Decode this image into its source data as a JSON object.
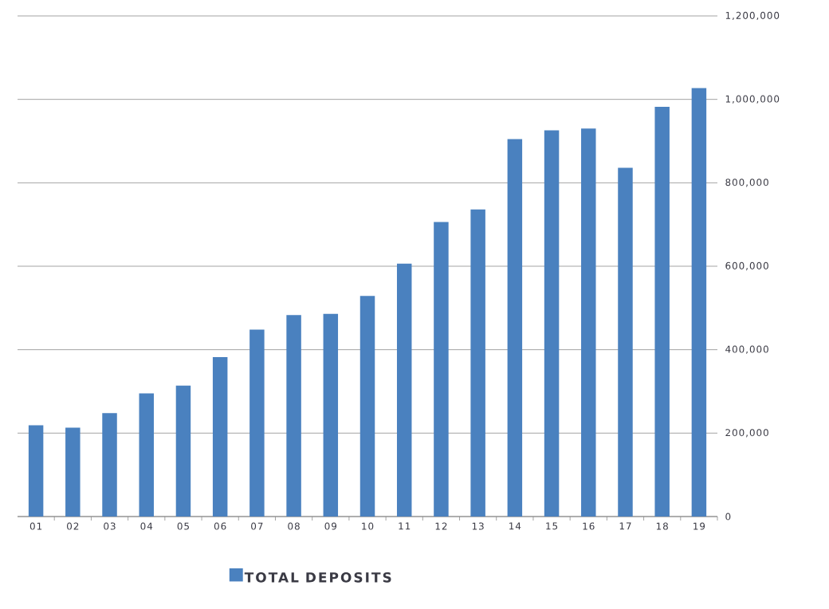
{
  "chart_data": {
    "type": "bar",
    "categories": [
      "01",
      "02",
      "03",
      "04",
      "05",
      "06",
      "07",
      "08",
      "09",
      "10",
      "11",
      "12",
      "13",
      "14",
      "15",
      "16",
      "17",
      "18",
      "19"
    ],
    "series": [
      {
        "name": "TOTAL DEPOSITS",
        "color": "#4a81bf",
        "values": [
          219000,
          213000,
          248000,
          295000,
          314000,
          382000,
          448000,
          483000,
          486000,
          529000,
          606000,
          706000,
          736000,
          905000,
          926000,
          930000,
          836000,
          982000,
          1027000
        ]
      }
    ],
    "ylim": [
      0,
      1200000
    ],
    "yticks": [
      {
        "value": 0,
        "label": "0"
      },
      {
        "value": 200000,
        "label": "200,000"
      },
      {
        "value": 400000,
        "label": "400,000"
      },
      {
        "value": 600000,
        "label": "600,000"
      },
      {
        "value": 800000,
        "label": "800,000"
      },
      {
        "value": 1000000,
        "label": "1,000,000"
      },
      {
        "value": 1200000,
        "label": "1,200,000"
      }
    ],
    "grid": "y",
    "legend": "bottom"
  }
}
